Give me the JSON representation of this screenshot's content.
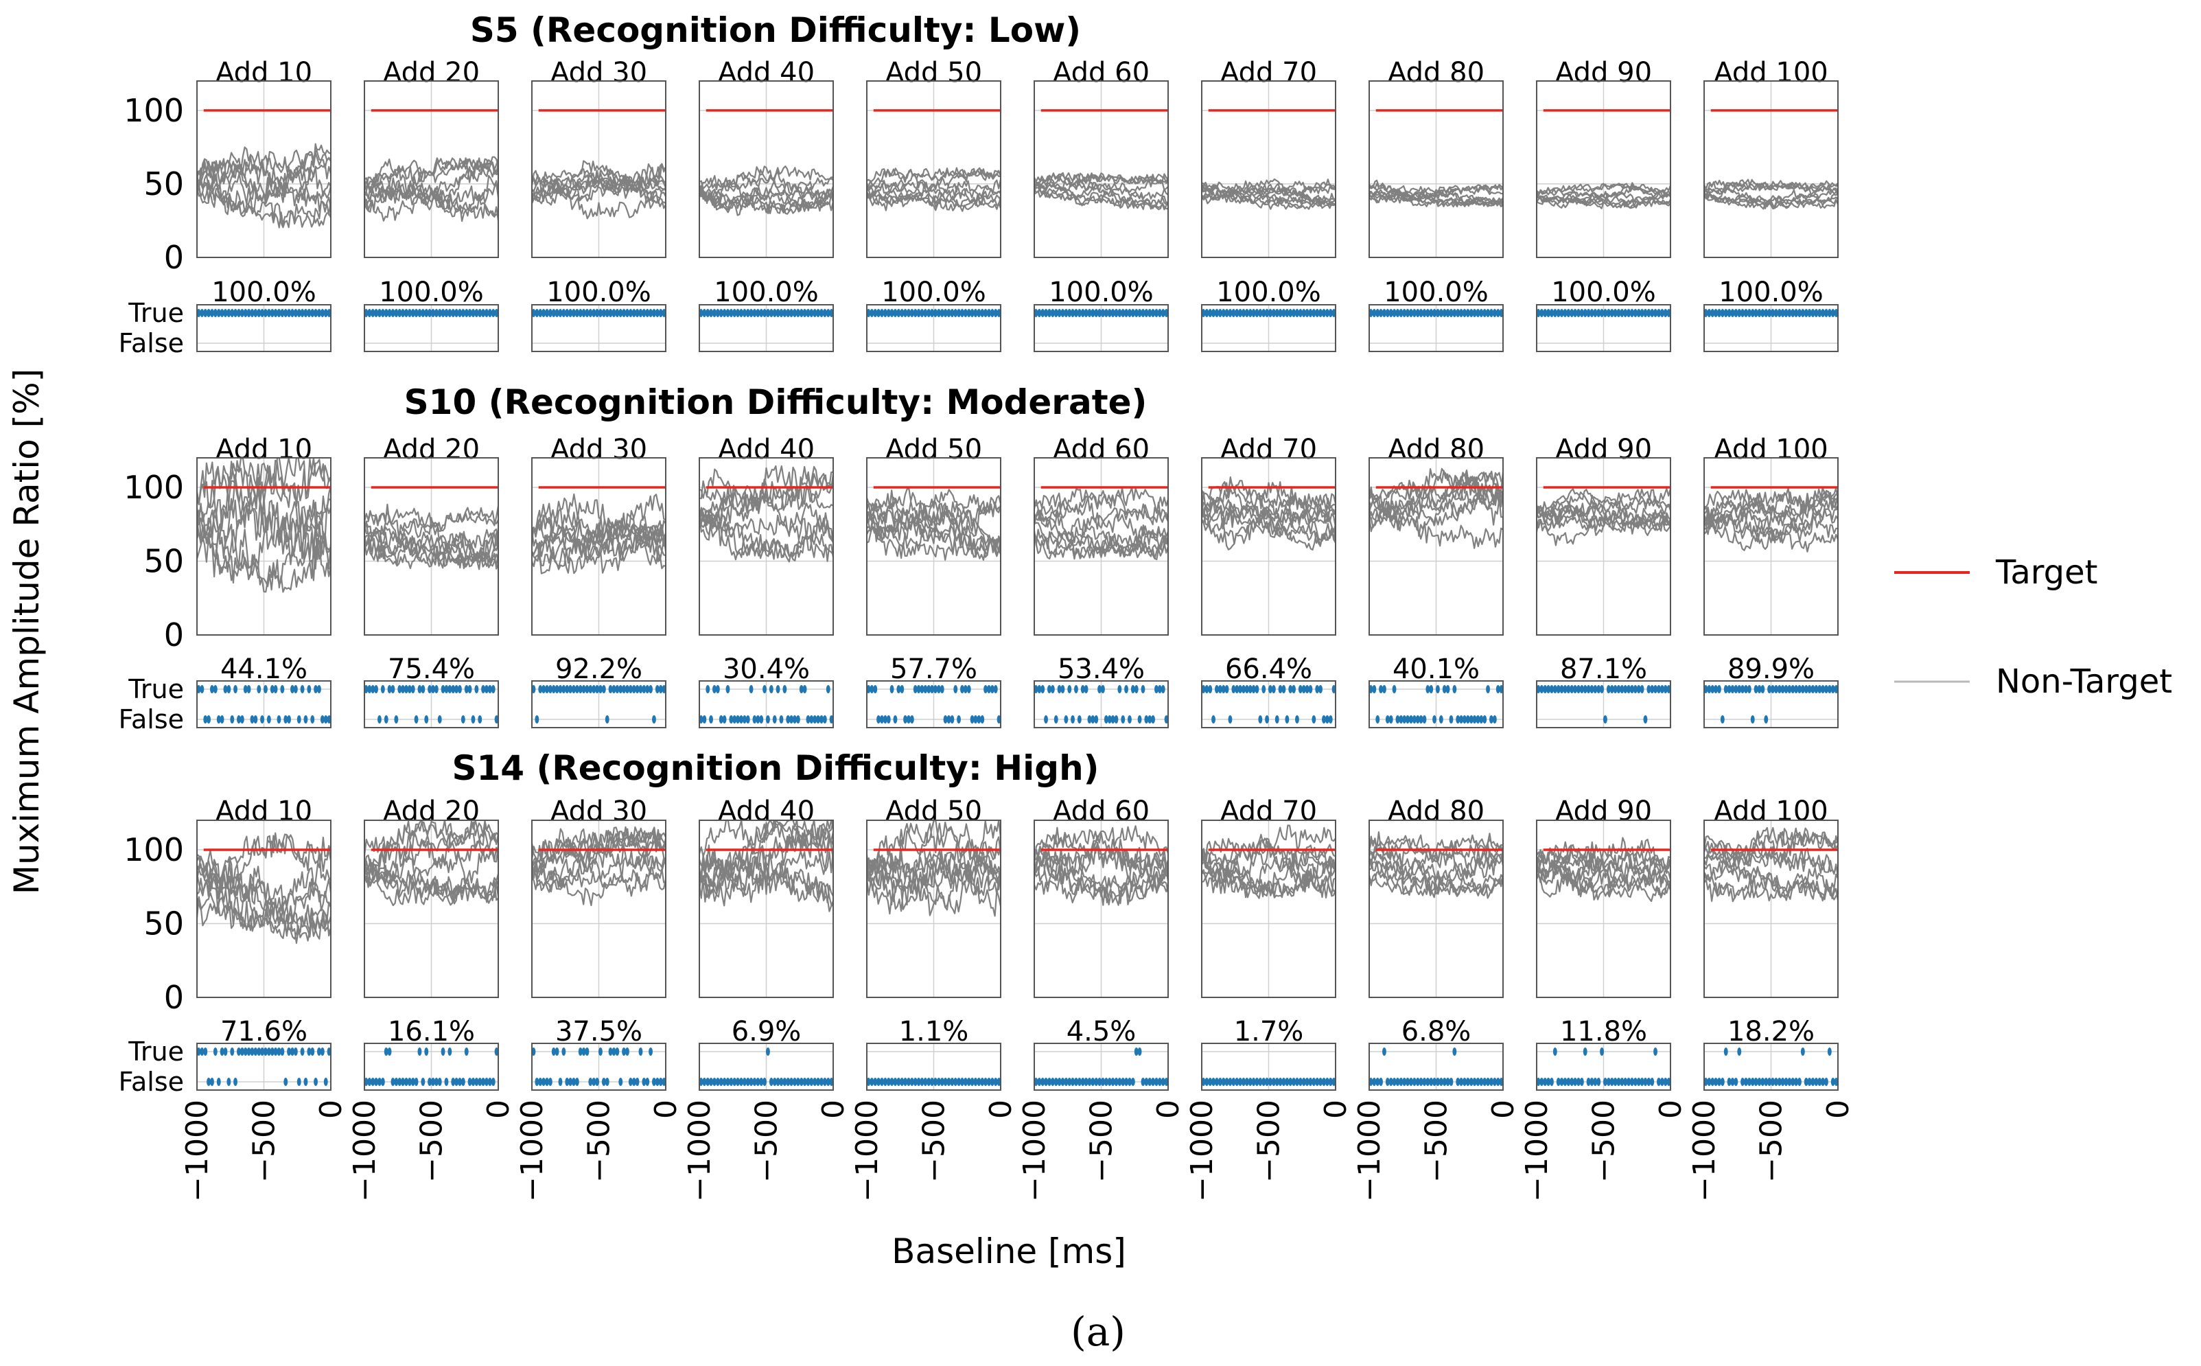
{
  "figure": {
    "ylabel": "Muximum Amplitude Ratio [%]",
    "xlabel": "Baseline [ms]",
    "caption": "(a)",
    "legend": {
      "placement": "right",
      "target": "Target",
      "non_target": "Non-Target"
    },
    "colors": {
      "target": "#e8261e",
      "non_target": "#808080",
      "points": "#1f77b4",
      "grid": "#cfcfcf"
    }
  },
  "chart_data": {
    "type": "line",
    "x_range": [
      -1000,
      0
    ],
    "x_ticks": [
      -1000,
      -500,
      0
    ],
    "x_tick_labels": [
      "−1000",
      "−500",
      "0"
    ],
    "ratio_ylim": [
      0,
      120
    ],
    "ratio_yticks": [
      0,
      50,
      100
    ],
    "bool_yticks": [
      "True",
      "False"
    ],
    "grid": true,
    "target_value": 100,
    "columns": [
      "Add 10",
      "Add 20",
      "Add 30",
      "Add 40",
      "Add 50",
      "Add 60",
      "Add 70",
      "Add 80",
      "Add 90",
      "Add 100"
    ],
    "groups": [
      {
        "title": "S5 (Recognition Difficulty: Low)",
        "percent_labels": [
          "100.0%",
          "100.0%",
          "100.0%",
          "100.0%",
          "100.0%",
          "100.0%",
          "100.0%",
          "100.0%",
          "100.0%",
          "100.0%"
        ],
        "percent_true": [
          100,
          100,
          100,
          100,
          100,
          100,
          100,
          100,
          100,
          100
        ],
        "non_target_mean": [
          50,
          46,
          46,
          46,
          46,
          45,
          44,
          44,
          42,
          43
        ],
        "non_target_spread": [
          24,
          18,
          16,
          14,
          12,
          10,
          9,
          8,
          7,
          8
        ]
      },
      {
        "title": "S10 (Recognition Difficulty: Moderate)",
        "percent_labels": [
          "44.1%",
          "75.4%",
          "92.2%",
          "30.4%",
          "57.7%",
          "53.4%",
          "66.4%",
          "40.1%",
          "87.1%",
          "89.9%"
        ],
        "percent_true": [
          44.1,
          75.4,
          92.2,
          30.4,
          57.7,
          53.4,
          66.4,
          40.1,
          87.1,
          89.9
        ],
        "non_target_mean": [
          78,
          72,
          68,
          82,
          78,
          76,
          82,
          86,
          80,
          78
        ],
        "non_target_spread": [
          40,
          22,
          24,
          26,
          22,
          20,
          20,
          22,
          16,
          18
        ]
      },
      {
        "title": "S14 (Recognition Difficulty: High)",
        "percent_labels": [
          "71.6%",
          "16.1%",
          "37.5%",
          "6.9%",
          "1.1%",
          "4.5%",
          "1.7%",
          "6.8%",
          "11.8%",
          "18.2%"
        ],
        "percent_true": [
          71.6,
          16.1,
          37.5,
          6.9,
          1.1,
          4.5,
          1.7,
          6.8,
          11.8,
          18.2
        ],
        "non_target_mean": [
          74,
          92,
          88,
          90,
          90,
          90,
          92,
          92,
          90,
          90
        ],
        "non_target_spread": [
          30,
          24,
          22,
          28,
          28,
          22,
          20,
          20,
          20,
          20
        ]
      }
    ]
  }
}
